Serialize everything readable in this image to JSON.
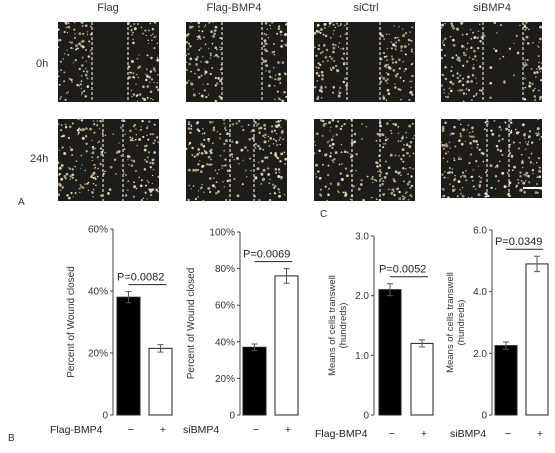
{
  "panel_letters": {
    "a": "A",
    "b": "B",
    "c": "C"
  },
  "microscopy": {
    "columns": [
      "Flag",
      "Flag-BMP4",
      "siCtrl",
      "siBMP4"
    ],
    "rows": [
      "0h",
      "24h"
    ]
  },
  "colors": {
    "tile_background": "#1e1c18",
    "bar_filled": "#000000",
    "bar_empty": "#ffffff",
    "axis": "#444444"
  },
  "chart_data": [
    {
      "type": "bar",
      "ylabel": "Percent of Wound closed",
      "ylim": [
        0,
        60
      ],
      "yticks": [
        "0",
        "20%",
        "40%",
        "60%"
      ],
      "ytick_values": [
        0,
        20,
        40,
        60
      ],
      "categories": [
        "−",
        "+"
      ],
      "values": [
        38,
        21.5
      ],
      "errors": [
        1.8,
        1.2
      ],
      "group_label": "Flag-BMP4",
      "pvalue": "P=0.0082"
    },
    {
      "type": "bar",
      "ylabel": "Percent of Wound closed",
      "ylim": [
        0,
        100
      ],
      "yticks": [
        "0",
        "20%",
        "40%",
        "60%",
        "80%",
        "100%"
      ],
      "ytick_values": [
        0,
        20,
        40,
        60,
        80,
        100
      ],
      "categories": [
        "−",
        "+"
      ],
      "values": [
        37,
        76
      ],
      "errors": [
        1.8,
        4
      ],
      "group_label": "siBMP4",
      "pvalue": "P=0.0069"
    },
    {
      "type": "bar",
      "ylabel": "Means of cells transwell (hundreds)",
      "ylim": [
        0,
        3.0
      ],
      "yticks": [
        "0",
        "1.0",
        "2.0",
        "3.0"
      ],
      "ytick_values": [
        0,
        1,
        2,
        3
      ],
      "categories": [
        "−",
        "+"
      ],
      "values": [
        2.1,
        1.2
      ],
      "errors": [
        0.1,
        0.06
      ],
      "group_label": "Flag-BMP4",
      "pvalue": "P=0.0052"
    },
    {
      "type": "bar",
      "ylabel": "Means of cells transwell (hundreds)",
      "ylim": [
        0,
        6.0
      ],
      "yticks": [
        "0",
        "2.0",
        "4.0",
        "6.0"
      ],
      "ytick_values": [
        0,
        2,
        4,
        6
      ],
      "categories": [
        "−",
        "+"
      ],
      "values": [
        2.25,
        4.9
      ],
      "errors": [
        0.12,
        0.25
      ],
      "group_label": "siBMP4",
      "pvalue": "P=0.0349"
    }
  ]
}
